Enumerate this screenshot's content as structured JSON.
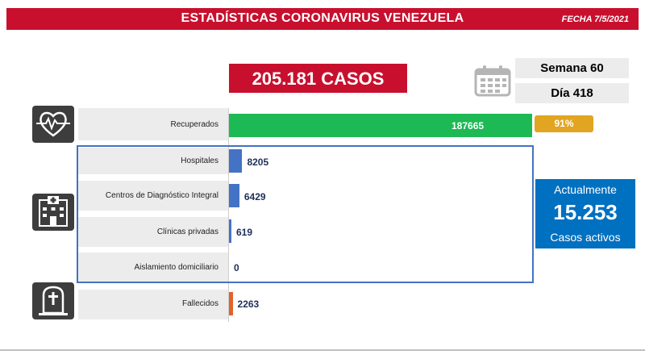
{
  "header": {
    "title": "ESTADÍSTICAS CORONAVIRUS VENEZUELA",
    "date": "FECHA 7/5/2021"
  },
  "summary": {
    "total_cases": "205.181 CASOS",
    "week": "Semana 60",
    "day": "Día 418",
    "recovered_percent": "91%",
    "active_heading": "Actualmente",
    "active_count": "15.253",
    "active_label": "Casos activos"
  },
  "icons": {
    "calendar": "calendar-icon",
    "health": "heart-pulse-icon",
    "hospital": "hospital-building-icon",
    "death": "tombstone-icon"
  },
  "colors": {
    "brand_red": "#c8102e",
    "recovered": "#1db954",
    "hospital_bars": "#4472c4",
    "deaths": "#e0622a",
    "active_box": "#0070c0",
    "percent_badge": "#e2a521"
  },
  "chart_data": {
    "type": "bar",
    "orientation": "horizontal",
    "categories": [
      "Recuperados",
      "Hospitales",
      "Centros de Diagnóstico Integral",
      "Clínicas privadas",
      "Aislamiento domiciliario",
      "Fallecidos"
    ],
    "values": [
      187665,
      8205,
      6429,
      619,
      0,
      2263
    ],
    "labels": [
      "187665",
      "8205",
      "6429",
      "619",
      "0",
      "2263"
    ],
    "xlim": [
      0,
      250000
    ],
    "grid": false,
    "legend": "none"
  }
}
